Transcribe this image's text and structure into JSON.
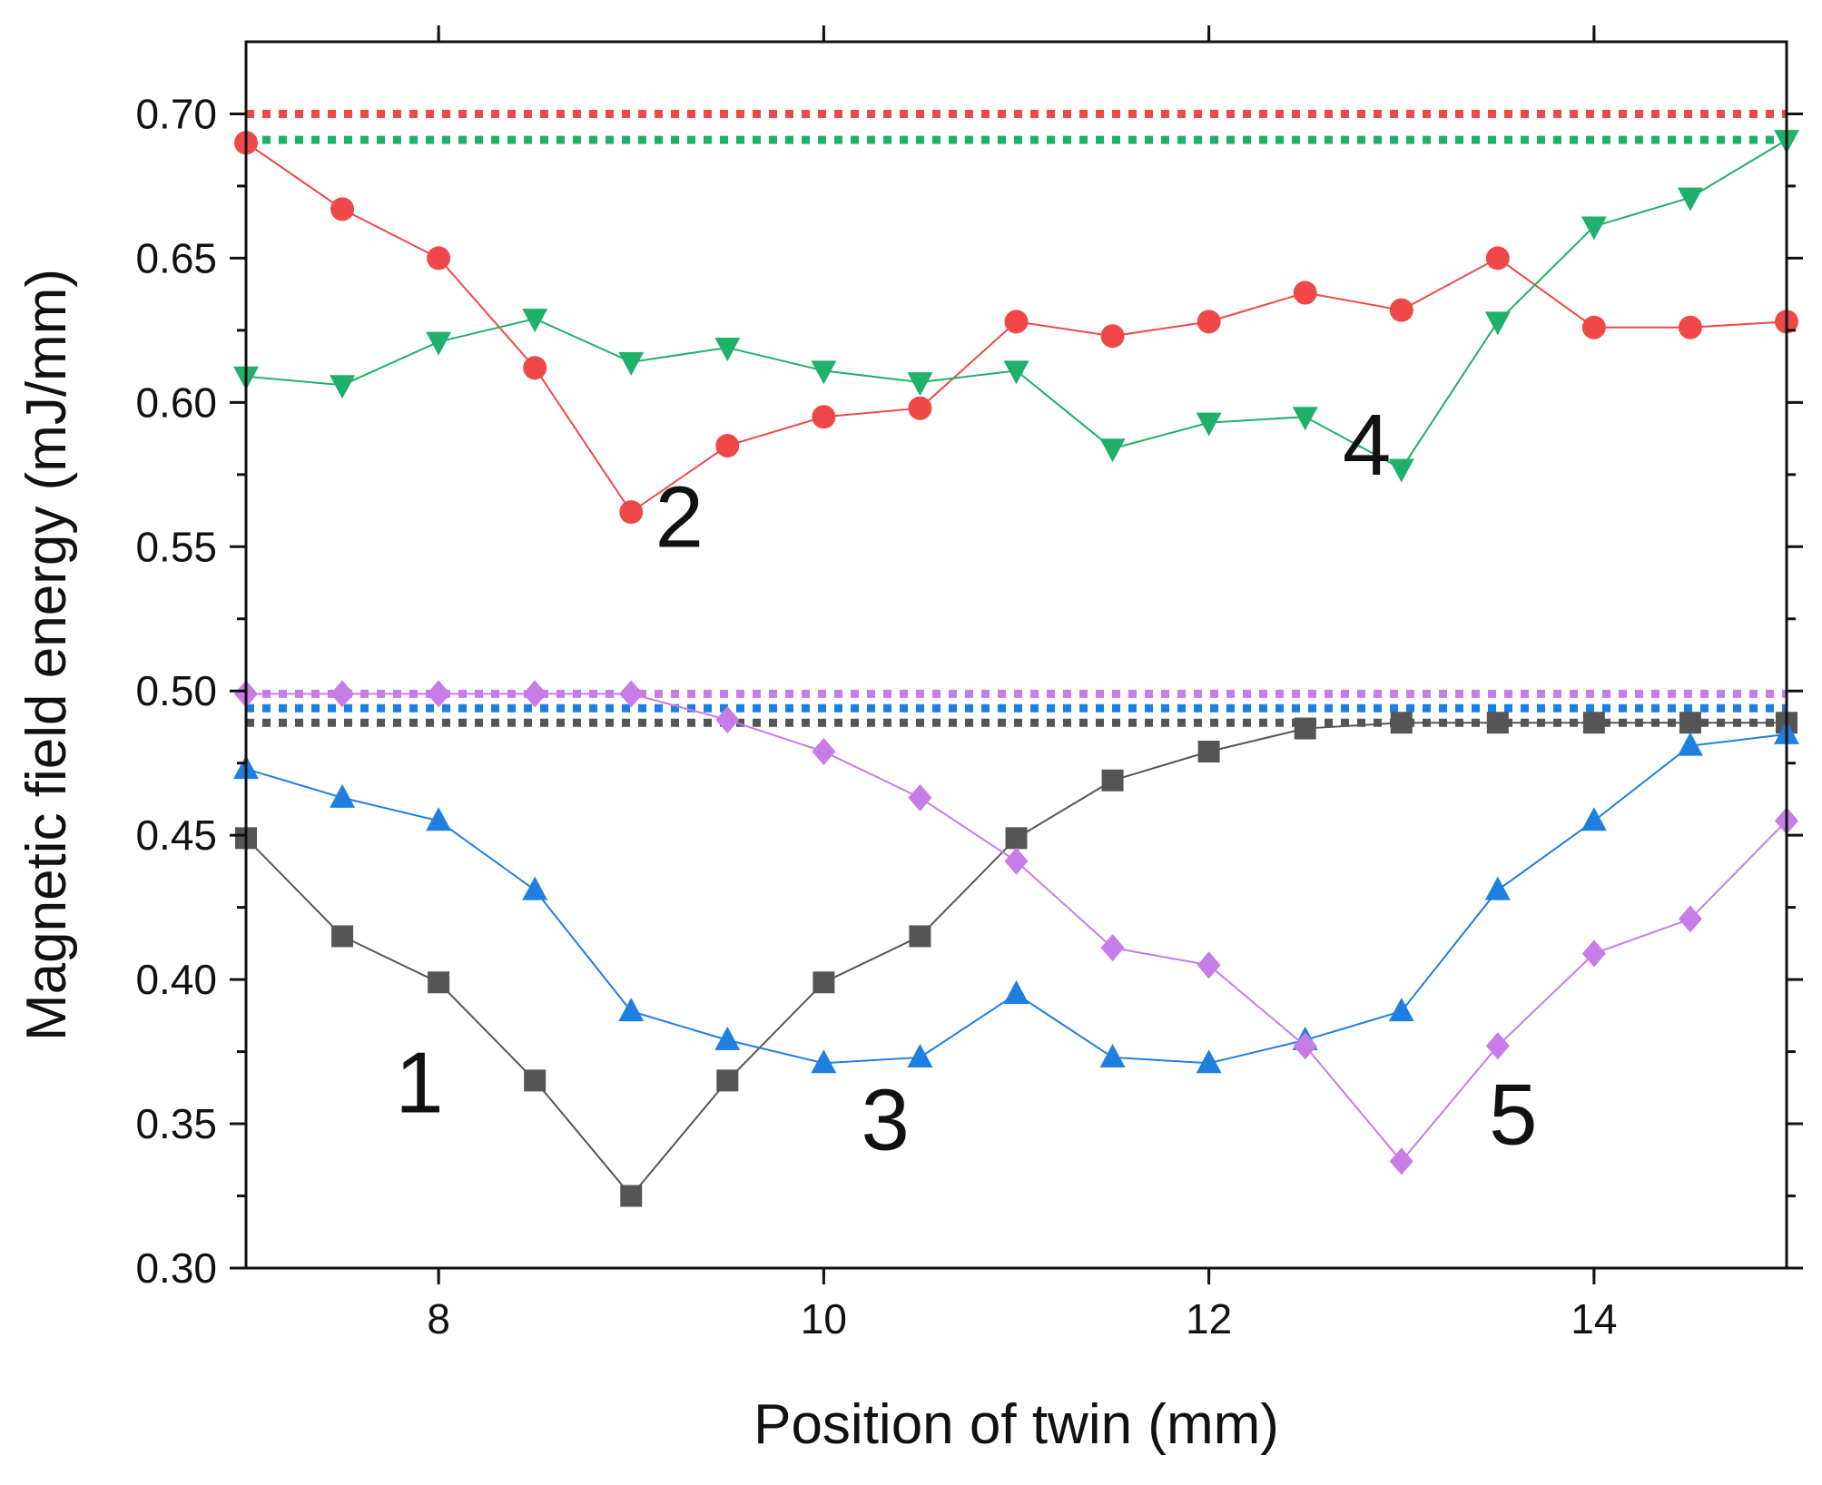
{
  "chart_data": {
    "type": "line",
    "title": "",
    "xlabel": "Position of twin (mm)",
    "ylabel": "Magnetic field energy (mJ/mm)",
    "xlim": [
      7,
      15
    ],
    "ylim": [
      0.3,
      0.725
    ],
    "xticks": [
      8,
      10,
      12,
      14
    ],
    "xtick_labels": [
      "8",
      "10",
      "12",
      "14"
    ],
    "yticks": [
      0.3,
      0.35,
      0.4,
      0.45,
      0.5,
      0.55,
      0.6,
      0.65,
      0.7
    ],
    "ytick_labels": [
      "0.30",
      "0.35",
      "0.40",
      "0.45",
      "0.50",
      "0.55",
      "0.60",
      "0.65",
      "0.70"
    ],
    "x": [
      7,
      7.5,
      8,
      8.5,
      9,
      9.5,
      10,
      10.5,
      11,
      11.5,
      12,
      12.5,
      13,
      13.5,
      14,
      14.5,
      15
    ],
    "series": [
      {
        "name": "1",
        "color": "#555555",
        "marker": "square",
        "reference": 0.489,
        "values": [
          0.449,
          0.415,
          0.399,
          0.365,
          0.325,
          0.365,
          0.399,
          0.415,
          0.449,
          0.469,
          0.479,
          0.487,
          0.489,
          0.489,
          0.489,
          0.489,
          0.489
        ]
      },
      {
        "name": "2",
        "color": "#f04848",
        "marker": "circle",
        "reference": 0.7,
        "values": [
          0.69,
          0.667,
          0.65,
          0.612,
          0.562,
          0.585,
          0.595,
          0.598,
          0.628,
          0.623,
          0.628,
          0.638,
          0.632,
          0.65,
          0.626,
          0.626,
          0.628
        ]
      },
      {
        "name": "3",
        "color": "#1e7fe0",
        "marker": "triangle-up",
        "reference": 0.494,
        "values": [
          0.473,
          0.463,
          0.455,
          0.431,
          0.389,
          0.379,
          0.371,
          0.373,
          0.395,
          0.373,
          0.371,
          0.379,
          0.389,
          0.431,
          0.455,
          0.481,
          0.485
        ]
      },
      {
        "name": "4",
        "color": "#1fb06a",
        "marker": "triangle-down",
        "reference": 0.691,
        "values": [
          0.609,
          0.606,
          0.621,
          0.629,
          0.614,
          0.619,
          0.611,
          0.607,
          0.611,
          0.584,
          0.593,
          0.595,
          0.577,
          0.628,
          0.661,
          0.671,
          0.691
        ]
      },
      {
        "name": "5",
        "color": "#c77ce8",
        "marker": "diamond",
        "reference": 0.499,
        "values": [
          0.499,
          0.499,
          0.499,
          0.499,
          0.499,
          0.49,
          0.479,
          0.463,
          0.441,
          0.411,
          0.405,
          0.377,
          0.337,
          0.377,
          0.409,
          0.421,
          0.455
        ]
      }
    ],
    "curve_labels": [
      {
        "text": "1",
        "x": 7.9,
        "y": 0.354
      },
      {
        "text": "2",
        "x": 9.25,
        "y": 0.55
      },
      {
        "text": "3",
        "x": 10.32,
        "y": 0.341
      },
      {
        "text": "4",
        "x": 12.82,
        "y": 0.575
      },
      {
        "text": "5",
        "x": 13.58,
        "y": 0.343
      }
    ]
  }
}
